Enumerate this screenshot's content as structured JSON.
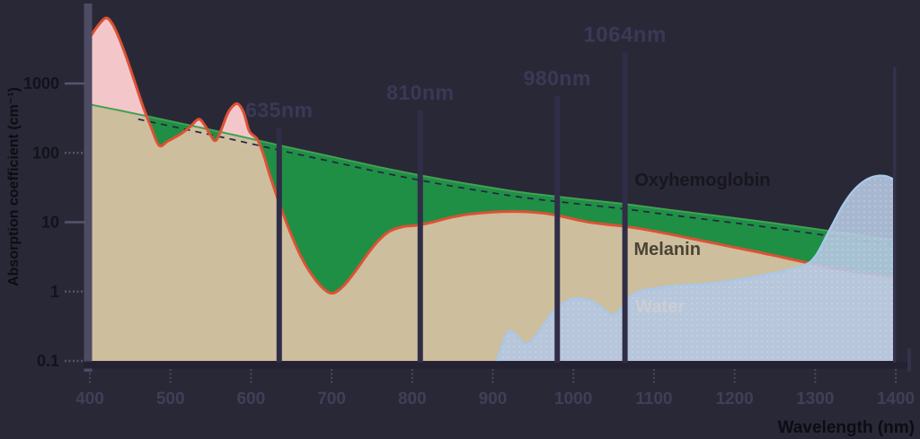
{
  "chart_data": {
    "type": "area",
    "title": "",
    "xlabel": "Wavelength (nm)",
    "ylabel": "Absorption coefficient (cm⁻¹)",
    "x_axis": {
      "unit": "nm",
      "min": 400,
      "max": 1400,
      "scale": "linear"
    },
    "y_axis": {
      "scale": "log",
      "min": 0.1,
      "max": 10000
    },
    "x_ticks": [
      400,
      500,
      600,
      700,
      800,
      900,
      1000,
      1100,
      1200,
      1300,
      1400
    ],
    "y_ticks": [
      {
        "label": "1000",
        "value": 1000
      },
      {
        "label": "100",
        "value": 100
      },
      {
        "label": "10",
        "value": 10
      },
      {
        "label": "1",
        "value": 1
      },
      {
        "label": "0.1",
        "value": 0.1
      }
    ],
    "laser_lines": [
      {
        "label": "635nm",
        "nm": 635,
        "top_value": 230
      },
      {
        "label": "810nm",
        "nm": 810,
        "top_value": 410
      },
      {
        "label": "980nm",
        "nm": 980,
        "top_value": 660
      },
      {
        "label": "1064nm",
        "nm": 1064,
        "top_value": 2800
      }
    ],
    "series": [
      {
        "id": "oxyhemoglobin",
        "name": "Oxyhemoglobin",
        "points": [
          [
            400,
            4600
          ],
          [
            410,
            6800
          ],
          [
            420,
            8800
          ],
          [
            428,
            7200
          ],
          [
            437,
            4300
          ],
          [
            447,
            2100
          ],
          [
            457,
            950
          ],
          [
            467,
            430
          ],
          [
            476,
            235
          ],
          [
            486,
            128
          ],
          [
            497,
            148
          ],
          [
            512,
            185
          ],
          [
            524,
            235
          ],
          [
            535,
            305
          ],
          [
            543,
            245
          ],
          [
            549,
            185
          ],
          [
            556,
            150
          ],
          [
            563,
            215
          ],
          [
            571,
            370
          ],
          [
            578,
            480
          ],
          [
            584,
            505
          ],
          [
            591,
            380
          ],
          [
            598,
            205
          ],
          [
            608,
            155
          ],
          [
            616,
            90
          ],
          [
            624,
            45
          ],
          [
            635,
            19
          ],
          [
            648,
            7.5
          ],
          [
            662,
            3.2
          ],
          [
            676,
            1.7
          ],
          [
            690,
            1.1
          ],
          [
            702,
            0.95
          ],
          [
            716,
            1.25
          ],
          [
            730,
            2
          ],
          [
            744,
            3.4
          ],
          [
            758,
            5.4
          ],
          [
            772,
            7.4
          ],
          [
            788,
            8.6
          ],
          [
            805,
            9
          ],
          [
            825,
            10
          ],
          [
            845,
            11.5
          ],
          [
            870,
            13
          ],
          [
            900,
            14
          ],
          [
            935,
            14.2
          ],
          [
            965,
            13.4
          ],
          [
            990,
            11.8
          ],
          [
            1015,
            10.2
          ],
          [
            1040,
            9.3
          ],
          [
            1064,
            8.7
          ],
          [
            1090,
            7.8
          ],
          [
            1120,
            6.7
          ],
          [
            1150,
            5.7
          ],
          [
            1185,
            4.7
          ],
          [
            1220,
            3.9
          ],
          [
            1255,
            3.2
          ],
          [
            1290,
            2.6
          ],
          [
            1320,
            2.2
          ],
          [
            1355,
            1.9
          ],
          [
            1400,
            1.6
          ]
        ]
      },
      {
        "id": "melanin",
        "name": "Melanin",
        "points": [
          [
            400,
            500
          ],
          [
            460,
            360
          ],
          [
            520,
            255
          ],
          [
            580,
            180
          ],
          [
            640,
            125
          ],
          [
            700,
            88
          ],
          [
            760,
            62
          ],
          [
            820,
            45
          ],
          [
            880,
            34
          ],
          [
            940,
            26.5
          ],
          [
            1000,
            22
          ],
          [
            1060,
            18.5
          ],
          [
            1120,
            15
          ],
          [
            1180,
            12.3
          ],
          [
            1240,
            10
          ],
          [
            1300,
            8
          ],
          [
            1350,
            6.6
          ],
          [
            1400,
            5.5
          ]
        ]
      },
      {
        "id": "water",
        "name": "Water",
        "points": [
          [
            905,
            0.1
          ],
          [
            912,
            0.17
          ],
          [
            920,
            0.27
          ],
          [
            929,
            0.235
          ],
          [
            940,
            0.175
          ],
          [
            952,
            0.215
          ],
          [
            968,
            0.4
          ],
          [
            982,
            0.62
          ],
          [
            1000,
            0.78
          ],
          [
            1018,
            0.76
          ],
          [
            1034,
            0.6
          ],
          [
            1048,
            0.45
          ],
          [
            1060,
            0.58
          ],
          [
            1072,
            0.88
          ],
          [
            1090,
            1.05
          ],
          [
            1120,
            1.18
          ],
          [
            1160,
            1.28
          ],
          [
            1200,
            1.45
          ],
          [
            1245,
            1.8
          ],
          [
            1270,
            2.1
          ],
          [
            1290,
            2.5
          ],
          [
            1300,
            3.2
          ],
          [
            1308,
            4.6
          ],
          [
            1316,
            7
          ],
          [
            1325,
            11
          ],
          [
            1335,
            18
          ],
          [
            1348,
            29
          ],
          [
            1362,
            40
          ],
          [
            1375,
            46
          ],
          [
            1388,
            46
          ],
          [
            1398,
            41
          ]
        ]
      }
    ],
    "area_labels": [
      {
        "id": "oxyhemoglobin",
        "text": "Oxyhemoglobin",
        "nm": 1076,
        "value": 40
      },
      {
        "id": "melanin",
        "text": "Melanin",
        "nm": 1075,
        "value": 4.0
      },
      {
        "id": "water",
        "text": "Water",
        "nm": 1077,
        "value": 0.6
      }
    ],
    "legend_position": "inline-labels",
    "grid": false
  },
  "colors": {
    "background": "#292836",
    "oxyhemoglobin_line": "#dd5134",
    "oxyhemoglobin_fill": "#f3c7ca",
    "green_overlap_fill": "#1f8f45",
    "melanin_fill": "#cdbe9e",
    "melanin_line": "#41a155",
    "melanin_dash_line": "#262440",
    "water_fill": "#b5c7e1",
    "water_line": "#a9c8e8",
    "water_dots": "#d6e1f1",
    "axis_bar": "#4e4c64",
    "x_axis_bar": "#232132",
    "right_border": "#34324a",
    "tick": "#4a4864",
    "x_tick_label": "#413e58",
    "y_tick_label": "#13111c",
    "axis_title": "#0d0c14",
    "laser_line": "#302d47",
    "laser_label": "#3b3857",
    "label_oxyhemoglobin": "#17161f",
    "label_melanin": "#4b4434",
    "label_water": "#ccced6"
  }
}
